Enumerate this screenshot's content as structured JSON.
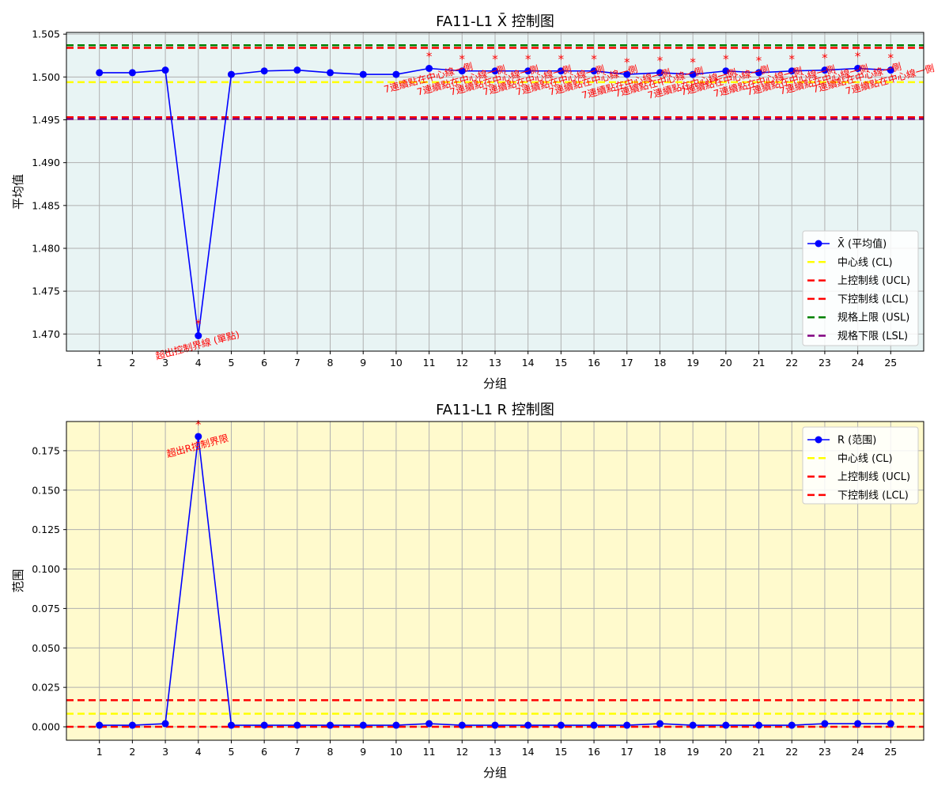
{
  "chart_data": [
    {
      "type": "line",
      "title": "FA11-L1 X̄ 控制图",
      "xlabel": "分组",
      "ylabel": "平均值",
      "x": [
        1,
        2,
        3,
        4,
        5,
        6,
        7,
        8,
        9,
        10,
        11,
        12,
        13,
        14,
        15,
        16,
        17,
        18,
        19,
        20,
        21,
        22,
        23,
        24,
        25
      ],
      "xlim": [
        0,
        26
      ],
      "ylim": [
        1.468,
        1.5052
      ],
      "yticks": [
        "1.470",
        "1.475",
        "1.480",
        "1.485",
        "1.490",
        "1.495",
        "1.500",
        "1.505"
      ],
      "ytick_values": [
        1.47,
        1.475,
        1.48,
        1.485,
        1.49,
        1.495,
        1.5,
        1.505
      ],
      "grid": true,
      "background": "#e8f4f4",
      "legend_position": "lower-right",
      "series": [
        {
          "name": "X̄ (平均值)",
          "color": "#0000ff",
          "marker": "circle",
          "values": [
            1.5005,
            1.5005,
            1.5008,
            1.4698,
            1.5003,
            1.5007,
            1.5008,
            1.5005,
            1.5003,
            1.5003,
            1.501,
            1.5007,
            1.5007,
            1.5007,
            1.5007,
            1.5007,
            1.5003,
            1.5005,
            1.5003,
            1.5007,
            1.5005,
            1.5007,
            1.5008,
            1.501,
            1.5008
          ]
        }
      ],
      "lines": [
        {
          "name": "中心线 (CL)",
          "value": 1.4994,
          "color": "#ffff00"
        },
        {
          "name": "上控制线 (UCL)",
          "value": 1.5034,
          "color": "#ff0000"
        },
        {
          "name": "下控制线 (LCL)",
          "value": 1.4953,
          "color": "#ff0000"
        },
        {
          "name": "规格上限 (USL)",
          "value": 1.5037,
          "color": "#008000"
        },
        {
          "name": "规格下限 (LSL)",
          "value": 1.4951,
          "color": "#800080"
        }
      ],
      "annotations": [
        {
          "x": 4,
          "y": 1.4698,
          "text": "超出控制界線 (單點)",
          "marker": "*"
        },
        {
          "x": 11,
          "y": 1.501,
          "text": "7連續點在中心線一側",
          "marker": "*"
        },
        {
          "x": 12,
          "y": 1.5007,
          "text": "7連續點在中心線一側",
          "marker": "*"
        },
        {
          "x": 13,
          "y": 1.5007,
          "text": "7連續點在中心線一側",
          "marker": "*"
        },
        {
          "x": 14,
          "y": 1.5007,
          "text": "7連續點在中心線一側",
          "marker": "*"
        },
        {
          "x": 15,
          "y": 1.5007,
          "text": "7連續點在中心線一側",
          "marker": "*"
        },
        {
          "x": 16,
          "y": 1.5007,
          "text": "7連續點在中心線一側",
          "marker": "*"
        },
        {
          "x": 17,
          "y": 1.5003,
          "text": "7連續點在中心線一側",
          "marker": "*"
        },
        {
          "x": 18,
          "y": 1.5005,
          "text": "7連續點在中心線一側",
          "marker": "*"
        },
        {
          "x": 19,
          "y": 1.5003,
          "text": "7連續點在中心線一側",
          "marker": "*"
        },
        {
          "x": 20,
          "y": 1.5007,
          "text": "7連續點在中心線一側",
          "marker": "*"
        },
        {
          "x": 21,
          "y": 1.5005,
          "text": "7連續點在中心線一側",
          "marker": "*"
        },
        {
          "x": 22,
          "y": 1.5007,
          "text": "7連續點在中心線一側",
          "marker": "*"
        },
        {
          "x": 23,
          "y": 1.5008,
          "text": "7連續點在中心線一側",
          "marker": "*"
        },
        {
          "x": 24,
          "y": 1.501,
          "text": "7連續點在中心線一側",
          "marker": "*"
        },
        {
          "x": 25,
          "y": 1.5008,
          "text": "7連續點在中心線一側",
          "marker": "*"
        }
      ]
    },
    {
      "type": "line",
      "title": "FA11-L1 R 控制图",
      "xlabel": "分组",
      "ylabel": "范围",
      "x": [
        1,
        2,
        3,
        4,
        5,
        6,
        7,
        8,
        9,
        10,
        11,
        12,
        13,
        14,
        15,
        16,
        17,
        18,
        19,
        20,
        21,
        22,
        23,
        24,
        25
      ],
      "xlim": [
        0,
        26
      ],
      "ylim": [
        -0.0085,
        0.1935
      ],
      "yticks": [
        "0.000",
        "0.025",
        "0.050",
        "0.075",
        "0.100",
        "0.125",
        "0.150",
        "0.175"
      ],
      "ytick_values": [
        0,
        0.025,
        0.05,
        0.075,
        0.1,
        0.125,
        0.15,
        0.175
      ],
      "grid": true,
      "background": "#fffacd",
      "legend_position": "upper-right",
      "series": [
        {
          "name": "R (范围)",
          "color": "#0000ff",
          "marker": "circle",
          "values": [
            0.001,
            0.001,
            0.002,
            0.184,
            0.001,
            0.001,
            0.001,
            0.001,
            0.001,
            0.001,
            0.002,
            0.001,
            0.001,
            0.001,
            0.001,
            0.001,
            0.001,
            0.002,
            0.001,
            0.001,
            0.001,
            0.001,
            0.002,
            0.002,
            0.002
          ]
        }
      ],
      "lines": [
        {
          "name": "中心线 (CL)",
          "value": 0.0083,
          "color": "#ffff00"
        },
        {
          "name": "上控制线 (UCL)",
          "value": 0.0169,
          "color": "#ff0000"
        },
        {
          "name": "下控制线 (LCL)",
          "value": 0.0,
          "color": "#ff0000"
        }
      ],
      "annotations": [
        {
          "x": 4,
          "y": 0.184,
          "text": "超出R控制界限",
          "marker": "*"
        }
      ]
    }
  ]
}
